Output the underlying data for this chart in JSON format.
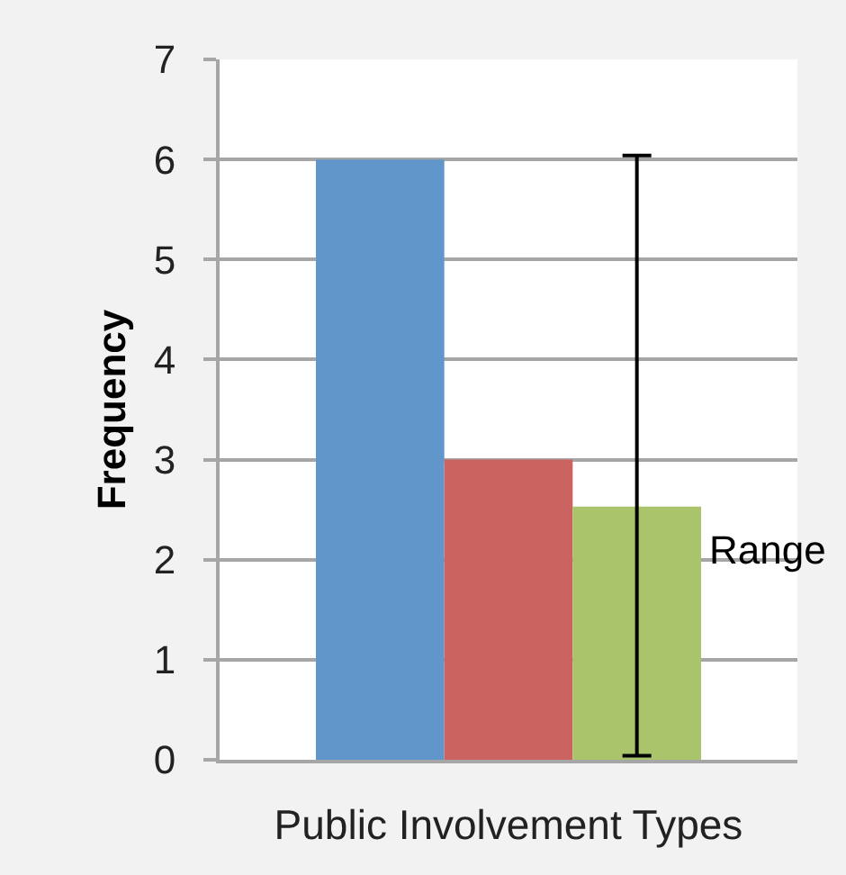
{
  "chart_data": {
    "type": "bar",
    "xlabel": "Public Involvement Types",
    "ylabel": "Frequency",
    "categories": [
      null
    ],
    "series": [
      {
        "color": "#6096ca",
        "values": [
          6
        ]
      },
      {
        "color": "#cb6360",
        "values": [
          3
        ]
      },
      {
        "color": "#aac46c",
        "values": [
          2.53
        ],
        "errors": [
          [
            0.04,
            6.04
          ]
        ]
      }
    ],
    "ylim": [
      0,
      7
    ],
    "yticks": [
      0,
      1,
      2,
      3,
      4,
      5,
      6,
      7
    ],
    "grid": "y",
    "tick_labels": "y",
    "annotations": [
      "Range"
    ]
  }
}
